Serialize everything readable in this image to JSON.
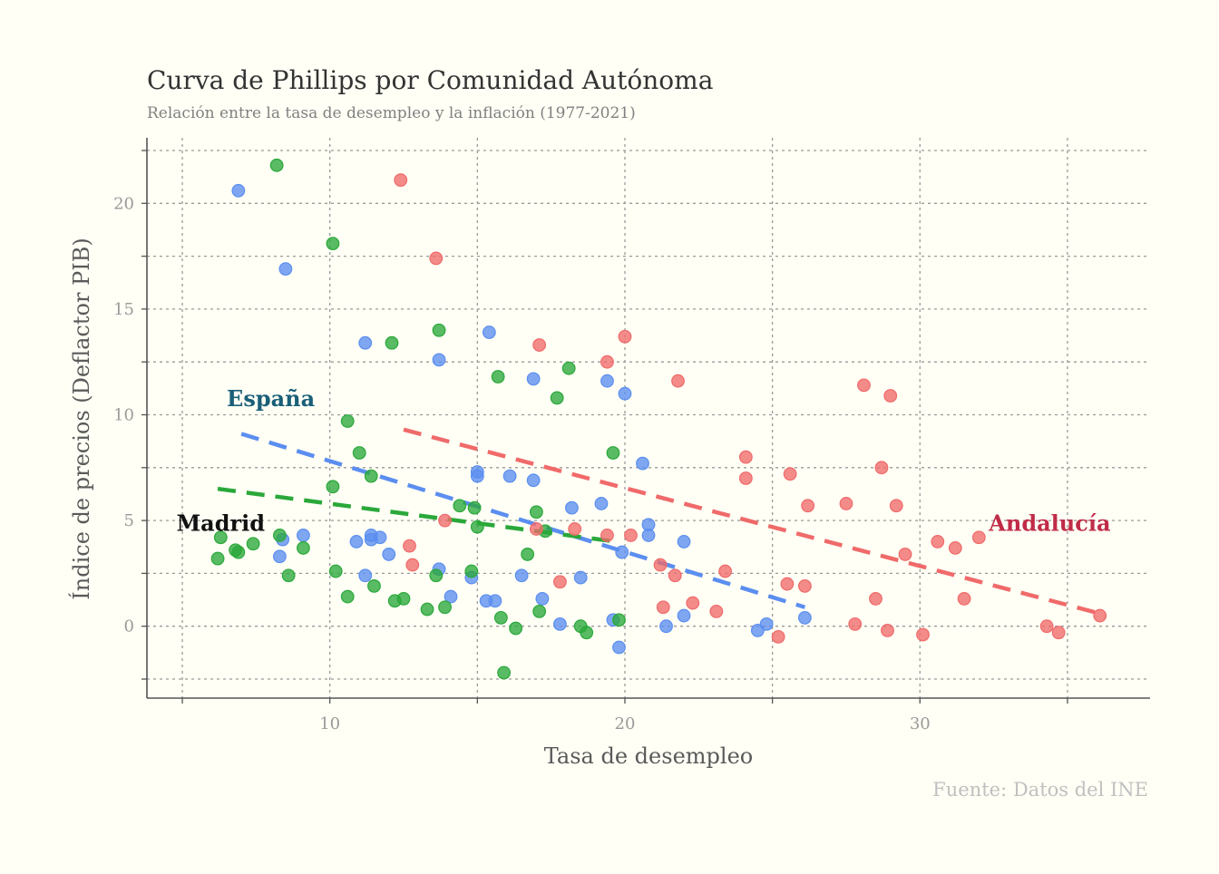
{
  "chart_data": {
    "type": "scatter",
    "title": "Curva de Phillips por Comunidad Autónoma",
    "subtitle": "Relación entre la tasa de desempleo y la inflación (1977-2021)",
    "xlabel": "Tasa de desempleo",
    "ylabel": "Índice de precios (Deflactor PIB)",
    "caption": "Fuente: Datos del INE",
    "xlim": [
      3.8,
      37.8
    ],
    "ylim": [
      -3.4,
      23.1
    ],
    "x_ticks": [
      10,
      20,
      30
    ],
    "y_ticks": [
      0,
      5,
      10,
      15,
      20
    ],
    "x_gridlines": [
      5,
      10,
      15,
      20,
      25,
      30,
      35
    ],
    "y_gridlines": [
      -2.5,
      0,
      2.5,
      5,
      7.5,
      10,
      12.5,
      15,
      17.5,
      20,
      22.5
    ],
    "grid": true,
    "legend": "none",
    "colors": {
      "espana": "#5b8ef0",
      "madrid": "#2aa83a",
      "andalucia": "#f06a6a"
    },
    "annotations": [
      {
        "text": "España",
        "x": 8.0,
        "y": 10.8,
        "color": "#1a5f78"
      },
      {
        "text": "Madrid",
        "x": 6.3,
        "y": 4.9,
        "color": "#111111"
      },
      {
        "text": "Andalucía",
        "x": 34.4,
        "y": 4.9,
        "color": "#c02c48"
      }
    ],
    "series": [
      {
        "key": "espana",
        "color": "#5b8ef0",
        "points": [
          [
            6.9,
            20.6
          ],
          [
            8.5,
            16.9
          ],
          [
            11.2,
            13.4
          ],
          [
            13.7,
            12.6
          ],
          [
            15.4,
            13.9
          ],
          [
            16.9,
            11.7
          ],
          [
            19.4,
            11.6
          ],
          [
            20.0,
            11.0
          ],
          [
            20.6,
            7.7
          ],
          [
            15.0,
            7.3
          ],
          [
            16.1,
            7.1
          ],
          [
            16.9,
            6.9
          ],
          [
            15.0,
            7.1
          ],
          [
            19.2,
            5.8
          ],
          [
            18.2,
            5.6
          ],
          [
            20.8,
            4.8
          ],
          [
            20.8,
            4.3
          ],
          [
            22.0,
            4.0
          ],
          [
            19.9,
            3.5
          ],
          [
            8.4,
            4.1
          ],
          [
            9.1,
            4.3
          ],
          [
            11.4,
            4.3
          ],
          [
            11.7,
            4.2
          ],
          [
            11.4,
            4.1
          ],
          [
            10.9,
            4.0
          ],
          [
            12.0,
            3.4
          ],
          [
            8.3,
            3.3
          ],
          [
            13.7,
            2.7
          ],
          [
            11.2,
            2.4
          ],
          [
            14.8,
            2.3
          ],
          [
            16.5,
            2.4
          ],
          [
            18.5,
            2.3
          ],
          [
            14.1,
            1.4
          ],
          [
            15.3,
            1.2
          ],
          [
            15.6,
            1.2
          ],
          [
            17.2,
            1.3
          ],
          [
            22.0,
            0.5
          ],
          [
            19.6,
            0.3
          ],
          [
            17.8,
            0.1
          ],
          [
            21.4,
            0.0
          ],
          [
            24.5,
            -0.2
          ],
          [
            24.8,
            0.1
          ],
          [
            26.1,
            0.4
          ],
          [
            19.8,
            -1.0
          ]
        ],
        "trend": [
          [
            7.0,
            9.1
          ],
          [
            26.1,
            0.9
          ]
        ]
      },
      {
        "key": "madrid",
        "color": "#2aa83a",
        "points": [
          [
            8.2,
            21.8
          ],
          [
            10.1,
            18.1
          ],
          [
            12.1,
            13.4
          ],
          [
            13.7,
            14.0
          ],
          [
            15.7,
            11.8
          ],
          [
            18.1,
            12.2
          ],
          [
            17.7,
            10.8
          ],
          [
            10.6,
            9.7
          ],
          [
            11.0,
            8.2
          ],
          [
            19.6,
            8.2
          ],
          [
            11.4,
            7.1
          ],
          [
            10.1,
            6.6
          ],
          [
            14.4,
            5.7
          ],
          [
            14.9,
            5.6
          ],
          [
            17.0,
            5.4
          ],
          [
            15.0,
            4.7
          ],
          [
            17.3,
            4.5
          ],
          [
            6.3,
            4.2
          ],
          [
            8.3,
            4.3
          ],
          [
            7.4,
            3.9
          ],
          [
            6.8,
            3.6
          ],
          [
            6.9,
            3.5
          ],
          [
            9.1,
            3.7
          ],
          [
            6.2,
            3.2
          ],
          [
            16.7,
            3.4
          ],
          [
            10.2,
            2.6
          ],
          [
            8.6,
            2.4
          ],
          [
            14.8,
            2.6
          ],
          [
            13.6,
            2.4
          ],
          [
            11.5,
            1.9
          ],
          [
            10.6,
            1.4
          ],
          [
            12.5,
            1.3
          ],
          [
            12.2,
            1.2
          ],
          [
            13.3,
            0.8
          ],
          [
            13.9,
            0.9
          ],
          [
            17.1,
            0.7
          ],
          [
            15.8,
            0.4
          ],
          [
            19.8,
            0.3
          ],
          [
            16.3,
            -0.1
          ],
          [
            18.5,
            0.0
          ],
          [
            18.7,
            -0.3
          ],
          [
            15.9,
            -2.2
          ]
        ],
        "trend": [
          [
            6.2,
            6.5
          ],
          [
            19.7,
            4.0
          ]
        ]
      },
      {
        "key": "andalucia",
        "color": "#f06a6a",
        "points": [
          [
            12.4,
            21.1
          ],
          [
            13.6,
            17.4
          ],
          [
            20.0,
            13.7
          ],
          [
            17.1,
            13.3
          ],
          [
            19.4,
            12.5
          ],
          [
            21.8,
            11.6
          ],
          [
            28.1,
            11.4
          ],
          [
            29.0,
            10.9
          ],
          [
            24.1,
            8.0
          ],
          [
            28.7,
            7.5
          ],
          [
            24.1,
            7.0
          ],
          [
            25.6,
            7.2
          ],
          [
            26.2,
            5.7
          ],
          [
            27.5,
            5.8
          ],
          [
            29.2,
            5.7
          ],
          [
            13.9,
            5.0
          ],
          [
            17.0,
            4.6
          ],
          [
            18.3,
            4.6
          ],
          [
            19.4,
            4.3
          ],
          [
            20.2,
            4.3
          ],
          [
            32.0,
            4.2
          ],
          [
            30.6,
            4.0
          ],
          [
            31.2,
            3.7
          ],
          [
            29.5,
            3.4
          ],
          [
            12.7,
            3.8
          ],
          [
            12.8,
            2.9
          ],
          [
            21.2,
            2.9
          ],
          [
            23.4,
            2.6
          ],
          [
            21.7,
            2.4
          ],
          [
            17.8,
            2.1
          ],
          [
            25.5,
            2.0
          ],
          [
            26.1,
            1.9
          ],
          [
            28.5,
            1.3
          ],
          [
            31.5,
            1.3
          ],
          [
            21.3,
            0.9
          ],
          [
            22.3,
            1.1
          ],
          [
            23.1,
            0.7
          ],
          [
            27.8,
            0.1
          ],
          [
            28.9,
            -0.2
          ],
          [
            30.1,
            -0.4
          ],
          [
            25.2,
            -0.5
          ],
          [
            34.3,
            0.0
          ],
          [
            34.7,
            -0.3
          ],
          [
            36.1,
            0.5
          ]
        ],
        "trend": [
          [
            12.5,
            9.3
          ],
          [
            36.1,
            0.6
          ]
        ]
      }
    ]
  }
}
